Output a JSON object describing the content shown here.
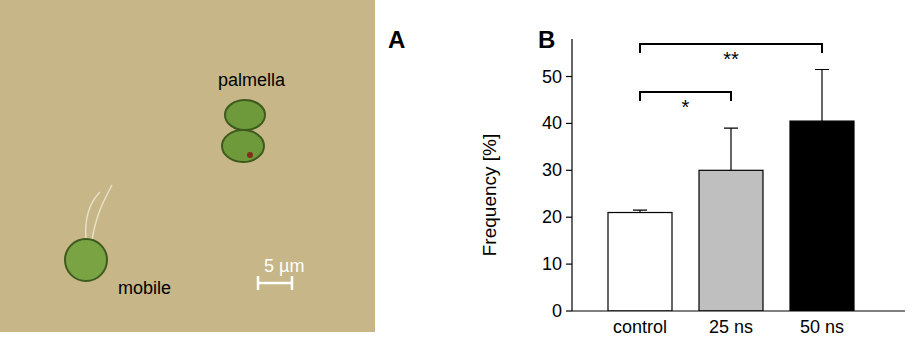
{
  "image": {
    "letter": "A",
    "labels": [
      "palmella",
      "mobile"
    ],
    "scale_bar": "5 µm"
  },
  "chart_data": {
    "letter": "B",
    "type": "bar",
    "y_label": "Frequency [%]",
    "categories": [
      "control",
      "25 ns",
      "50 ns"
    ],
    "values": [
      21,
      30,
      40.5
    ],
    "errors": [
      0.5,
      9,
      11
    ],
    "colors": [
      "#ffffff",
      "#bfbfbf",
      "#000000"
    ],
    "ylim": [
      0,
      58
    ],
    "yticks": [
      0,
      10,
      20,
      30,
      40,
      50
    ],
    "grid": false,
    "annotations": [
      {
        "from": 0,
        "to": 1,
        "label": "*"
      },
      {
        "from": 0,
        "to": 2,
        "label": "**"
      }
    ]
  }
}
